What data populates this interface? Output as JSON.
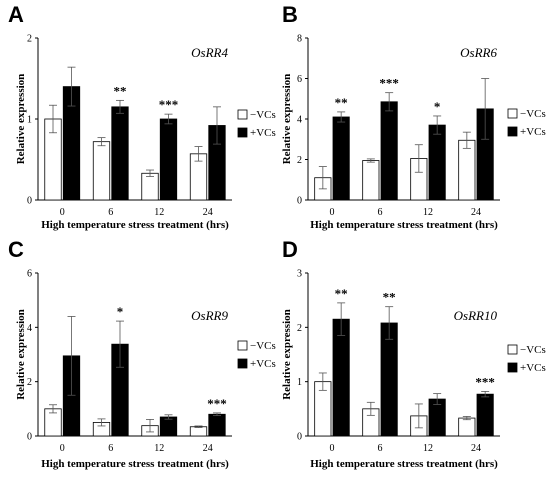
{
  "chart_data": [
    {
      "type": "bar",
      "panel": "A",
      "gene": "OsRR4",
      "categories": [
        "0",
        "6",
        "12",
        "24"
      ],
      "series": [
        {
          "name": "−VCs",
          "values": [
            1.0,
            0.72,
            0.33,
            0.57
          ],
          "errors": [
            0.17,
            0.05,
            0.04,
            0.09
          ]
        },
        {
          "name": "+VCs",
          "values": [
            1.4,
            1.15,
            1.0,
            0.92
          ],
          "errors": [
            0.24,
            0.08,
            0.06,
            0.23
          ]
        }
      ],
      "significance": [
        "",
        "**",
        "***",
        ""
      ],
      "ylim": [
        0,
        2
      ],
      "yticks": [
        "0",
        "1",
        "2"
      ],
      "xlabel": "High temperature stress treatment (hrs)",
      "ylabel": "Relative expression"
    },
    {
      "type": "bar",
      "panel": "B",
      "gene": "OsRR6",
      "categories": [
        "0",
        "6",
        "12",
        "24"
      ],
      "series": [
        {
          "name": "−VCs",
          "values": [
            1.1,
            1.95,
            2.05,
            2.95
          ],
          "errors": [
            0.55,
            0.08,
            0.68,
            0.4
          ]
        },
        {
          "name": "+VCs",
          "values": [
            4.1,
            4.85,
            3.7,
            4.5
          ],
          "errors": [
            0.25,
            0.45,
            0.45,
            1.5
          ]
        }
      ],
      "significance": [
        "**",
        "***",
        "*",
        ""
      ],
      "ylim": [
        0,
        8
      ],
      "yticks": [
        "0",
        "2",
        "4",
        "6",
        "8"
      ],
      "xlabel": "High temperature stress treatment (hrs)",
      "ylabel": "Relative expression"
    },
    {
      "type": "bar",
      "panel": "C",
      "gene": "OsRR9",
      "categories": [
        "0",
        "6",
        "12",
        "24"
      ],
      "series": [
        {
          "name": "−VCs",
          "values": [
            1.0,
            0.5,
            0.38,
            0.34
          ],
          "errors": [
            0.15,
            0.13,
            0.23,
            0.03
          ]
        },
        {
          "name": "+VCs",
          "values": [
            2.95,
            3.38,
            0.7,
            0.8
          ],
          "errors": [
            1.45,
            0.85,
            0.08,
            0.05
          ]
        }
      ],
      "significance": [
        "",
        "*",
        "",
        "***"
      ],
      "ylim": [
        0,
        6
      ],
      "yticks": [
        "0",
        "2",
        "4",
        "6"
      ],
      "xlabel": "High temperature stress treatment (hrs)",
      "ylabel": "Relative expression"
    },
    {
      "type": "bar",
      "panel": "D",
      "gene": "OsRR10",
      "categories": [
        "0",
        "6",
        "12",
        "24"
      ],
      "series": [
        {
          "name": "−VCs",
          "values": [
            1.0,
            0.5,
            0.37,
            0.33
          ],
          "errors": [
            0.16,
            0.12,
            0.22,
            0.03
          ]
        },
        {
          "name": "+VCs",
          "values": [
            2.15,
            2.08,
            0.68,
            0.77
          ],
          "errors": [
            0.3,
            0.3,
            0.1,
            0.05
          ]
        }
      ],
      "significance": [
        "**",
        "**",
        "",
        "***"
      ],
      "ylim": [
        0,
        3
      ],
      "yticks": [
        "0",
        "1",
        "2",
        "3"
      ],
      "xlabel": "High temperature stress treatment (hrs)",
      "ylabel": "Relative expression"
    }
  ]
}
